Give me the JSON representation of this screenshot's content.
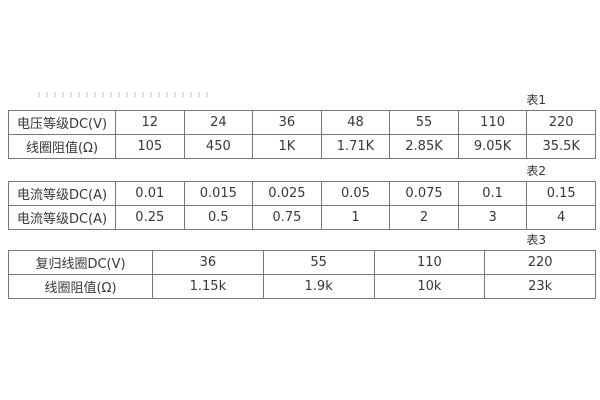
{
  "page": {
    "background": "#ffffff",
    "border_color": "#777777",
    "text_color": "#383838"
  },
  "tables": [
    {
      "caption": "表1",
      "rows": [
        {
          "header": "电压等级DC(V)",
          "cells": [
            "12",
            "24",
            "36",
            "48",
            "55",
            "110",
            "220"
          ]
        },
        {
          "header": "线圈阻值(Ω)",
          "cells": [
            "105",
            "450",
            "1K",
            "1.71K",
            "2.85K",
            "9.05K",
            "35.5K"
          ]
        }
      ]
    },
    {
      "caption": "表2",
      "rows": [
        {
          "header": "电流等级DC(A)",
          "cells": [
            "0.01",
            "0.015",
            "0.025",
            "0.05",
            "0.075",
            "0.1",
            "0.15"
          ]
        },
        {
          "header": "电流等级DC(A)",
          "cells": [
            "0.25",
            "0.5",
            "0.75",
            "1",
            "2",
            "3",
            "4"
          ]
        }
      ]
    },
    {
      "caption": "表3",
      "rows": [
        {
          "header": "复归线圈DC(V)",
          "cells": [
            "36",
            "55",
            "110",
            "220"
          ]
        },
        {
          "header": "线圈阻值(Ω)",
          "cells": [
            "1.15k",
            "1.9k",
            "10k",
            "23k"
          ]
        }
      ]
    }
  ]
}
